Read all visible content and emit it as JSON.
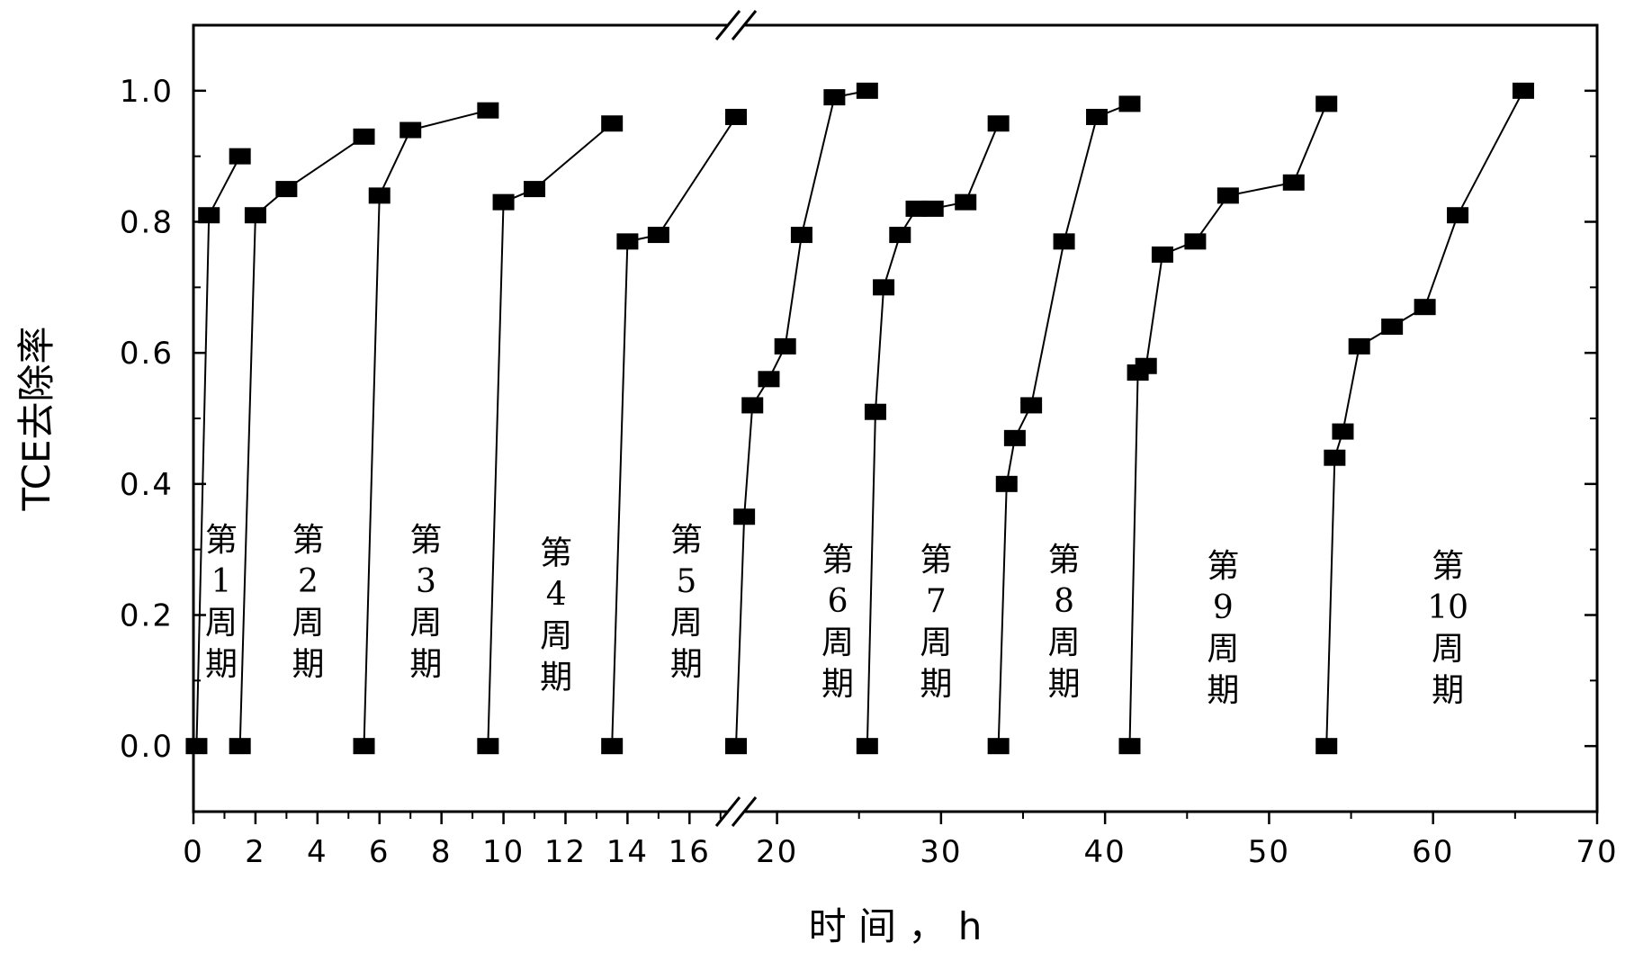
{
  "chart_data": {
    "type": "scatter",
    "xlabel": "时 间 ， h",
    "ylabel": "TCE去除率",
    "ylim": [
      -0.1,
      1.1
    ],
    "yticks": [
      "0.0",
      "0.2",
      "0.4",
      "0.6",
      "0.8",
      "1.0"
    ],
    "x_axis_segments": [
      {
        "range": [
          0,
          17.5
        ],
        "ticks": [
          "0",
          "2",
          "4",
          "6",
          "8",
          "10",
          "12",
          "14",
          "16"
        ]
      },
      {
        "range": [
          17.5,
          70
        ],
        "ticks": [
          "20",
          "30",
          "40",
          "50",
          "60",
          "70"
        ]
      }
    ],
    "axis_break": true,
    "marker": "square",
    "series": [
      {
        "x": [
          0.1,
          0.5,
          1.5
        ],
        "y": [
          0.0,
          0.81,
          0.9
        ]
      },
      {
        "x": [
          1.5,
          2.0,
          3.0,
          5.5
        ],
        "y": [
          0.0,
          0.81,
          0.85,
          0.93
        ]
      },
      {
        "x": [
          5.5,
          6.0,
          7.0,
          9.5
        ],
        "y": [
          0.0,
          0.84,
          0.94,
          0.97
        ]
      },
      {
        "x": [
          9.5,
          10.0,
          11.0,
          13.5
        ],
        "y": [
          0.0,
          0.83,
          0.85,
          0.95
        ]
      },
      {
        "x": [
          13.5,
          14.0,
          15.0,
          17.5
        ],
        "y": [
          0.0,
          0.77,
          0.78,
          0.96
        ]
      },
      {
        "x": [
          17.5,
          18.0,
          18.5,
          19.5,
          20.5,
          21.5,
          23.5,
          25.5
        ],
        "y": [
          0.0,
          0.35,
          0.52,
          0.56,
          0.61,
          0.78,
          0.99,
          1.0
        ]
      },
      {
        "x": [
          25.5,
          26.0,
          26.5,
          27.5,
          28.5,
          29.5,
          31.5,
          33.5
        ],
        "y": [
          0.0,
          0.51,
          0.7,
          0.78,
          0.82,
          0.82,
          0.83,
          0.95
        ]
      },
      {
        "x": [
          33.5,
          34.0,
          34.5,
          35.5,
          37.5,
          39.5,
          41.5
        ],
        "y": [
          0.0,
          0.4,
          0.47,
          0.52,
          0.77,
          0.96,
          0.98
        ]
      },
      {
        "x": [
          41.5,
          42.0,
          42.5,
          43.5,
          45.5,
          47.5,
          51.5,
          53.5
        ],
        "y": [
          0.0,
          0.57,
          0.58,
          0.75,
          0.77,
          0.84,
          0.86,
          0.98
        ]
      },
      {
        "x": [
          53.5,
          54.0,
          54.5,
          55.5,
          57.5,
          59.5,
          61.5,
          65.5
        ],
        "y": [
          0.0,
          0.44,
          0.48,
          0.61,
          0.64,
          0.67,
          0.81,
          1.0
        ]
      }
    ],
    "annotations": [
      {
        "x": 0.9,
        "y": 0.22,
        "lines": [
          "第",
          "1",
          "周",
          "期"
        ]
      },
      {
        "x": 3.7,
        "y": 0.22,
        "lines": [
          "第",
          "2",
          "周",
          "期"
        ]
      },
      {
        "x": 7.5,
        "y": 0.22,
        "lines": [
          "第",
          "3",
          "周",
          "期"
        ]
      },
      {
        "x": 11.7,
        "y": 0.2,
        "lines": [
          "第",
          "4",
          "周",
          "期"
        ]
      },
      {
        "x": 15.9,
        "y": 0.22,
        "lines": [
          "第",
          "5",
          "周",
          "期"
        ]
      },
      {
        "x": 23.7,
        "y": 0.19,
        "lines": [
          "第",
          "6",
          "周",
          "期"
        ]
      },
      {
        "x": 29.7,
        "y": 0.19,
        "lines": [
          "第",
          "7",
          "周",
          "期"
        ]
      },
      {
        "x": 37.5,
        "y": 0.19,
        "lines": [
          "第",
          "8",
          "周",
          "期"
        ]
      },
      {
        "x": 47.2,
        "y": 0.18,
        "lines": [
          "第",
          "9",
          "周",
          "期"
        ]
      },
      {
        "x": 60.9,
        "y": 0.18,
        "lines": [
          "第",
          "10",
          "周",
          "期"
        ]
      }
    ]
  }
}
